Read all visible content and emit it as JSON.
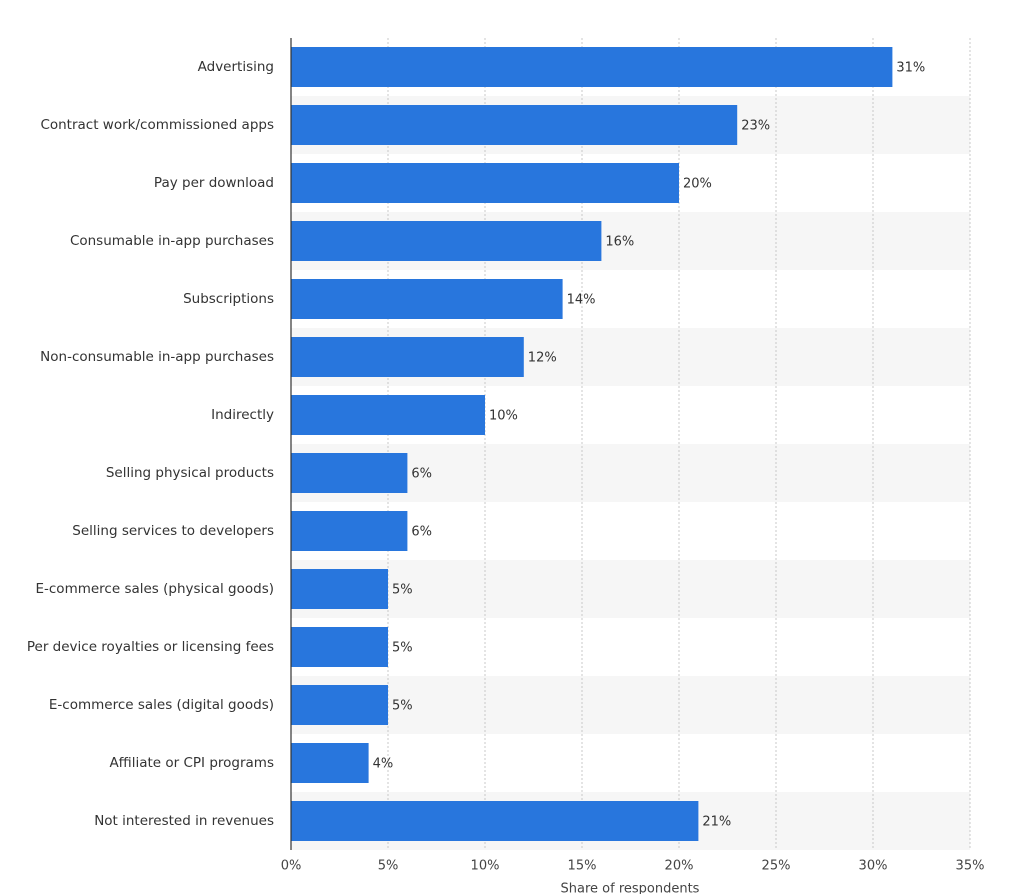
{
  "chart_data": {
    "type": "bar",
    "orientation": "horizontal",
    "x_label": "Share of respondents",
    "categories": [
      "Advertising",
      "Contract work/commissioned apps",
      "Pay per download",
      "Consumable in-app purchases",
      "Subscriptions",
      "Non-consumable in-app purchases",
      "Indirectly",
      "Selling physical products",
      "Selling services to developers",
      "E-commerce sales (physical goods)",
      "Per device royalties or licensing fees",
      "E-commerce sales (digital goods)",
      "Affiliate or CPI programs",
      "Not interested in revenues"
    ],
    "values": [
      31,
      23,
      20,
      16,
      14,
      12,
      10,
      6,
      6,
      5,
      5,
      5,
      4,
      21
    ],
    "value_labels": [
      "31%",
      "23%",
      "20%",
      "16%",
      "14%",
      "12%",
      "10%",
      "6%",
      "6%",
      "5%",
      "5%",
      "5%",
      "4%",
      "21%"
    ],
    "color": "#2876dd",
    "xlim": [
      0,
      35
    ],
    "xticks": [
      {
        "value": 0,
        "label": "0%"
      },
      {
        "value": 5,
        "label": "5%"
      },
      {
        "value": 10,
        "label": "10%"
      },
      {
        "value": 15,
        "label": "15%"
      },
      {
        "value": 20,
        "label": "20%"
      },
      {
        "value": 25,
        "label": "25%"
      },
      {
        "value": 30,
        "label": "30%"
      },
      {
        "value": 35,
        "label": "35%"
      }
    ],
    "grid": true
  }
}
